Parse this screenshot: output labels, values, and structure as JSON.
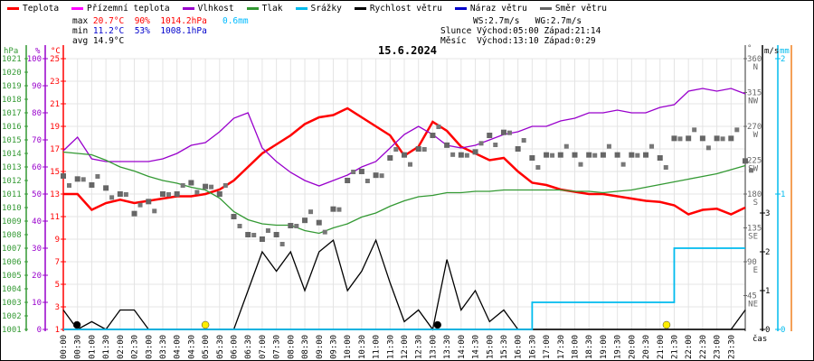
{
  "legend": [
    {
      "label": "Teplota",
      "color": "#ff0000"
    },
    {
      "label": "Přízemní teplota",
      "color": "#ff00ff"
    },
    {
      "label": "Vlhkost",
      "color": "#9900cc"
    },
    {
      "label": "Tlak",
      "color": "#339933"
    },
    {
      "label": "Srážky",
      "color": "#00bbee"
    },
    {
      "label": "Rychlost větru",
      "color": "#000000"
    },
    {
      "label": "Náraz větru",
      "color": "#0000cc"
    },
    {
      "label": "Směr větru",
      "color": "#666666"
    }
  ],
  "stats": {
    "max_label": "max",
    "max_temp": "20.7°C",
    "max_hum": "90%",
    "max_press": "1014.2hPa",
    "max_rain": "0.6mm",
    "min_label": "min",
    "min_temp": "11.2°C",
    "min_hum": "53%",
    "min_press": "1008.1hPa",
    "avg_label": "avg",
    "avg_temp": "14.9°C"
  },
  "astro": {
    "ws": "WS:2.7m/s",
    "wg": "WG:2.7m/s",
    "sun_label": "Slunce",
    "sun_rise": "Východ:05:00",
    "sun_set": "Západ:21:14",
    "moon_label": "Měsíc",
    "moon_rise": "Východ:13:10",
    "moon_set": "Západ:0:29"
  },
  "chart_data": {
    "type": "line",
    "title": "15.6.2024",
    "xlabel": "čas",
    "x_ticks": [
      "00:00",
      "00:30",
      "01:00",
      "01:30",
      "02:00",
      "02:30",
      "03:00",
      "03:30",
      "04:00",
      "04:30",
      "05:00",
      "05:30",
      "06:00",
      "06:30",
      "07:00",
      "07:30",
      "08:00",
      "08:30",
      "09:00",
      "09:30",
      "10:00",
      "10:30",
      "11:00",
      "11:30",
      "12:00",
      "12:30",
      "13:00",
      "13:30",
      "14:00",
      "14:30",
      "15:00",
      "15:30",
      "16:00",
      "16:30",
      "17:00",
      "17:30",
      "18:00",
      "18:30",
      "19:00",
      "19:30",
      "20:00",
      "20:30",
      "21:00",
      "21:30",
      "22:00",
      "22:30",
      "23:00",
      "23:30"
    ],
    "axes": {
      "pressure": {
        "unit": "hPa",
        "range": [
          1001,
          1021
        ],
        "ticks": [
          "1001",
          "1002",
          "1003",
          "1004",
          "1005",
          "1006",
          "1007",
          "1008",
          "1009",
          "1010",
          "1011",
          "1012",
          "1013",
          "1014",
          "1015",
          "1016",
          "1017",
          "1018",
          "1019",
          "1020",
          "1021"
        ],
        "color": "#339933"
      },
      "humidity": {
        "unit": "%",
        "range": [
          0,
          100
        ],
        "ticks": [
          "0",
          "10",
          "20",
          "30",
          "40",
          "50",
          "60",
          "70",
          "80",
          "90",
          "100"
        ],
        "color": "#9900cc"
      },
      "temperature": {
        "unit": "°C",
        "range": [
          1,
          25
        ],
        "ticks": [
          "1",
          "3",
          "5",
          "7",
          "9",
          "11",
          "13",
          "15",
          "17",
          "19",
          "21",
          "23",
          "25"
        ],
        "color": "#ff0000"
      },
      "direction": {
        "unit": "°",
        "range": [
          0,
          360
        ],
        "ticks": [
          {
            "v": "45",
            "c": "NE"
          },
          {
            "v": "90",
            "c": "E"
          },
          {
            "v": "135",
            "c": "SE"
          },
          {
            "v": "180",
            "c": "S"
          },
          {
            "v": "225",
            "c": "SW"
          },
          {
            "v": "270",
            "c": "W"
          },
          {
            "v": "315",
            "c": "NW"
          },
          {
            "v": "360",
            "c": "N"
          }
        ],
        "color": "#666666"
      },
      "wind": {
        "unit": "m/s",
        "range": [
          0,
          3.5
        ],
        "ticks": [
          "0",
          "1",
          "2",
          "3"
        ],
        "color": "#000000"
      },
      "rain": {
        "unit": "mm",
        "range": [
          0,
          2
        ],
        "ticks": [
          "0",
          "1",
          "2"
        ],
        "color": "#00bbee"
      }
    },
    "series": [
      {
        "name": "Teplota",
        "axis": "temperature",
        "step_h": 0.5,
        "values": [
          13,
          13,
          11.6,
          12.2,
          12.5,
          12.2,
          12.4,
          12.6,
          12.8,
          12.8,
          13,
          13.4,
          14.2,
          15.4,
          16.6,
          17.4,
          18.2,
          19.2,
          19.8,
          20,
          20.6,
          19.8,
          19,
          18.2,
          16.4,
          17.2,
          19.4,
          18.6,
          17.2,
          16.6,
          16,
          16.2,
          15,
          14,
          13.8,
          13.4,
          13.2,
          13,
          13,
          12.8,
          12.6,
          12.4,
          12.3,
          12,
          11.2,
          11.6,
          11.7,
          11.2,
          11.8
        ]
      },
      {
        "name": "Vlhkost",
        "axis": "humidity",
        "step_h": 0.5,
        "values": [
          66,
          71,
          63,
          62,
          62,
          62,
          62,
          63,
          65,
          68,
          69,
          73,
          78,
          80,
          67,
          62,
          58,
          55,
          53,
          55,
          57,
          60,
          62,
          67,
          72,
          75,
          72,
          68,
          67,
          68,
          70,
          72,
          73,
          75,
          75,
          77,
          78,
          80,
          80,
          81,
          80,
          80,
          82,
          83,
          88,
          89,
          88,
          89,
          87
        ]
      },
      {
        "name": "Tlak",
        "axis": "pressure",
        "step_h": 0.5,
        "values": [
          1014.1,
          1014,
          1013.9,
          1013.5,
          1013,
          1012.7,
          1012.3,
          1012,
          1011.8,
          1011.5,
          1011.3,
          1010.7,
          1009.7,
          1009.1,
          1008.8,
          1008.7,
          1008.7,
          1008.3,
          1008.1,
          1008.5,
          1008.8,
          1009.3,
          1009.6,
          1010.1,
          1010.5,
          1010.8,
          1010.9,
          1011.1,
          1011.1,
          1011.2,
          1011.2,
          1011.3,
          1011.3,
          1011.3,
          1011.3,
          1011.3,
          1011.2,
          1011.2,
          1011.1,
          1011.2,
          1011.3,
          1011.5,
          1011.7,
          1011.9,
          1012.1,
          1012.3,
          1012.5,
          1012.8,
          1013.1
        ]
      },
      {
        "name": "Rychlost větru",
        "axis": "wind",
        "step_h": 0.5,
        "values": [
          0.5,
          0,
          0.2,
          0,
          0.5,
          0.5,
          0,
          0,
          0,
          0,
          0,
          0,
          0,
          1,
          2,
          1.5,
          2,
          1,
          2,
          2.3,
          1,
          1.5,
          2.3,
          1.2,
          0.2,
          0.5,
          0,
          1.8,
          0.5,
          1,
          0.2,
          0.5,
          0,
          0,
          0,
          0,
          0,
          0,
          0,
          0,
          0,
          0,
          0,
          0,
          0,
          0,
          0,
          0,
          0.5
        ]
      },
      {
        "name": "Srážky",
        "axis": "rain",
        "step_h": 0.5,
        "values": [
          0,
          0,
          0,
          0,
          0,
          0,
          0,
          0,
          0,
          0,
          0,
          0,
          0,
          0,
          0,
          0,
          0,
          0,
          0,
          0,
          0,
          0,
          0,
          0,
          0,
          0,
          0,
          0,
          0,
          0,
          0,
          0,
          0,
          0.2,
          0.2,
          0.2,
          0.2,
          0.2,
          0.2,
          0.2,
          0.2,
          0.2,
          0.2,
          0.6,
          0.6,
          0.6,
          0.6,
          0.6,
          0.6
        ]
      },
      {
        "name": "Směr větru",
        "axis": "direction",
        "step_h": 0.5,
        "kind": "scatter",
        "values": [
          204,
          200,
          192,
          188,
          180,
          154,
          170,
          180,
          180,
          195,
          190,
          180,
          150,
          126,
          120,
          126,
          138,
          145,
          142,
          160,
          198,
          210,
          205,
          228,
          232,
          240,
          258,
          245,
          232,
          236,
          258,
          262,
          240,
          228,
          232,
          232,
          232,
          232,
          232,
          232,
          232,
          232,
          228,
          254,
          254,
          254,
          254,
          254,
          224
        ]
      }
    ],
    "markers": [
      {
        "type": "moon",
        "time_h": 0.48,
        "color": "#000000"
      },
      {
        "type": "sun",
        "time_h": 5.0,
        "color": "#ffee00"
      },
      {
        "type": "moon",
        "time_h": 13.17,
        "color": "#000000"
      },
      {
        "type": "sun",
        "time_h": 21.23,
        "color": "#ffee00"
      }
    ]
  }
}
